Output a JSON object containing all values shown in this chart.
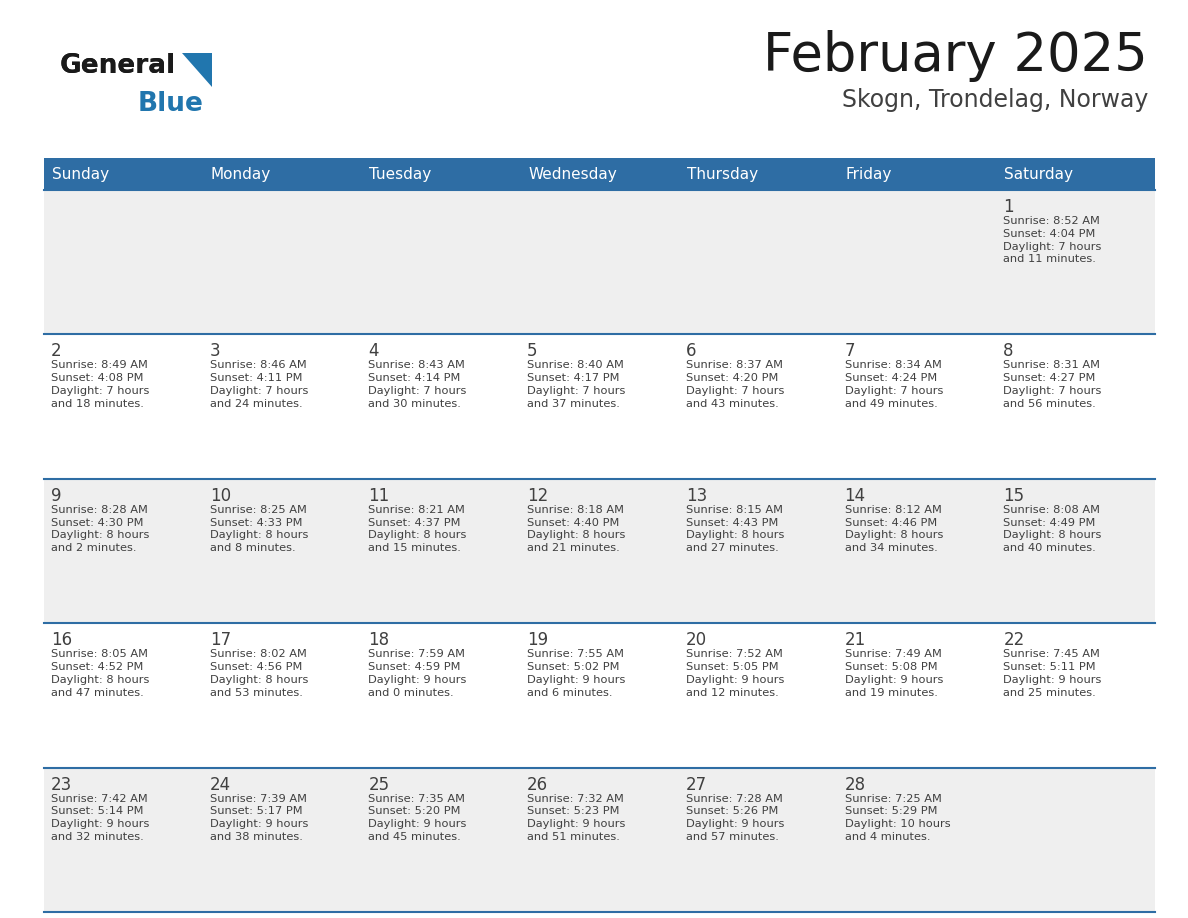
{
  "title": "February 2025",
  "subtitle": "Skogn, Trondelag, Norway",
  "header_bg": "#2E6DA4",
  "header_text": "#FFFFFF",
  "cell_bg_light": "#EFEFEF",
  "cell_bg_white": "#FFFFFF",
  "row_line_color": "#2E6DA4",
  "text_color": "#404040",
  "days_of_week": [
    "Sunday",
    "Monday",
    "Tuesday",
    "Wednesday",
    "Thursday",
    "Friday",
    "Saturday"
  ],
  "calendar_data": [
    [
      {
        "day": "",
        "info": ""
      },
      {
        "day": "",
        "info": ""
      },
      {
        "day": "",
        "info": ""
      },
      {
        "day": "",
        "info": ""
      },
      {
        "day": "",
        "info": ""
      },
      {
        "day": "",
        "info": ""
      },
      {
        "day": "1",
        "info": "Sunrise: 8:52 AM\nSunset: 4:04 PM\nDaylight: 7 hours\nand 11 minutes."
      }
    ],
    [
      {
        "day": "2",
        "info": "Sunrise: 8:49 AM\nSunset: 4:08 PM\nDaylight: 7 hours\nand 18 minutes."
      },
      {
        "day": "3",
        "info": "Sunrise: 8:46 AM\nSunset: 4:11 PM\nDaylight: 7 hours\nand 24 minutes."
      },
      {
        "day": "4",
        "info": "Sunrise: 8:43 AM\nSunset: 4:14 PM\nDaylight: 7 hours\nand 30 minutes."
      },
      {
        "day": "5",
        "info": "Sunrise: 8:40 AM\nSunset: 4:17 PM\nDaylight: 7 hours\nand 37 minutes."
      },
      {
        "day": "6",
        "info": "Sunrise: 8:37 AM\nSunset: 4:20 PM\nDaylight: 7 hours\nand 43 minutes."
      },
      {
        "day": "7",
        "info": "Sunrise: 8:34 AM\nSunset: 4:24 PM\nDaylight: 7 hours\nand 49 minutes."
      },
      {
        "day": "8",
        "info": "Sunrise: 8:31 AM\nSunset: 4:27 PM\nDaylight: 7 hours\nand 56 minutes."
      }
    ],
    [
      {
        "day": "9",
        "info": "Sunrise: 8:28 AM\nSunset: 4:30 PM\nDaylight: 8 hours\nand 2 minutes."
      },
      {
        "day": "10",
        "info": "Sunrise: 8:25 AM\nSunset: 4:33 PM\nDaylight: 8 hours\nand 8 minutes."
      },
      {
        "day": "11",
        "info": "Sunrise: 8:21 AM\nSunset: 4:37 PM\nDaylight: 8 hours\nand 15 minutes."
      },
      {
        "day": "12",
        "info": "Sunrise: 8:18 AM\nSunset: 4:40 PM\nDaylight: 8 hours\nand 21 minutes."
      },
      {
        "day": "13",
        "info": "Sunrise: 8:15 AM\nSunset: 4:43 PM\nDaylight: 8 hours\nand 27 minutes."
      },
      {
        "day": "14",
        "info": "Sunrise: 8:12 AM\nSunset: 4:46 PM\nDaylight: 8 hours\nand 34 minutes."
      },
      {
        "day": "15",
        "info": "Sunrise: 8:08 AM\nSunset: 4:49 PM\nDaylight: 8 hours\nand 40 minutes."
      }
    ],
    [
      {
        "day": "16",
        "info": "Sunrise: 8:05 AM\nSunset: 4:52 PM\nDaylight: 8 hours\nand 47 minutes."
      },
      {
        "day": "17",
        "info": "Sunrise: 8:02 AM\nSunset: 4:56 PM\nDaylight: 8 hours\nand 53 minutes."
      },
      {
        "day": "18",
        "info": "Sunrise: 7:59 AM\nSunset: 4:59 PM\nDaylight: 9 hours\nand 0 minutes."
      },
      {
        "day": "19",
        "info": "Sunrise: 7:55 AM\nSunset: 5:02 PM\nDaylight: 9 hours\nand 6 minutes."
      },
      {
        "day": "20",
        "info": "Sunrise: 7:52 AM\nSunset: 5:05 PM\nDaylight: 9 hours\nand 12 minutes."
      },
      {
        "day": "21",
        "info": "Sunrise: 7:49 AM\nSunset: 5:08 PM\nDaylight: 9 hours\nand 19 minutes."
      },
      {
        "day": "22",
        "info": "Sunrise: 7:45 AM\nSunset: 5:11 PM\nDaylight: 9 hours\nand 25 minutes."
      }
    ],
    [
      {
        "day": "23",
        "info": "Sunrise: 7:42 AM\nSunset: 5:14 PM\nDaylight: 9 hours\nand 32 minutes."
      },
      {
        "day": "24",
        "info": "Sunrise: 7:39 AM\nSunset: 5:17 PM\nDaylight: 9 hours\nand 38 minutes."
      },
      {
        "day": "25",
        "info": "Sunrise: 7:35 AM\nSunset: 5:20 PM\nDaylight: 9 hours\nand 45 minutes."
      },
      {
        "day": "26",
        "info": "Sunrise: 7:32 AM\nSunset: 5:23 PM\nDaylight: 9 hours\nand 51 minutes."
      },
      {
        "day": "27",
        "info": "Sunrise: 7:28 AM\nSunset: 5:26 PM\nDaylight: 9 hours\nand 57 minutes."
      },
      {
        "day": "28",
        "info": "Sunrise: 7:25 AM\nSunset: 5:29 PM\nDaylight: 10 hours\nand 4 minutes."
      },
      {
        "day": "",
        "info": ""
      }
    ]
  ],
  "row_bg_pattern": [
    "light",
    "white",
    "light",
    "white",
    "light"
  ],
  "logo_color_general": "#1a1a1a",
  "logo_color_blue": "#2176AE",
  "logo_triangle_color": "#2176AE",
  "title_color": "#1a1a1a",
  "subtitle_color": "#404040"
}
